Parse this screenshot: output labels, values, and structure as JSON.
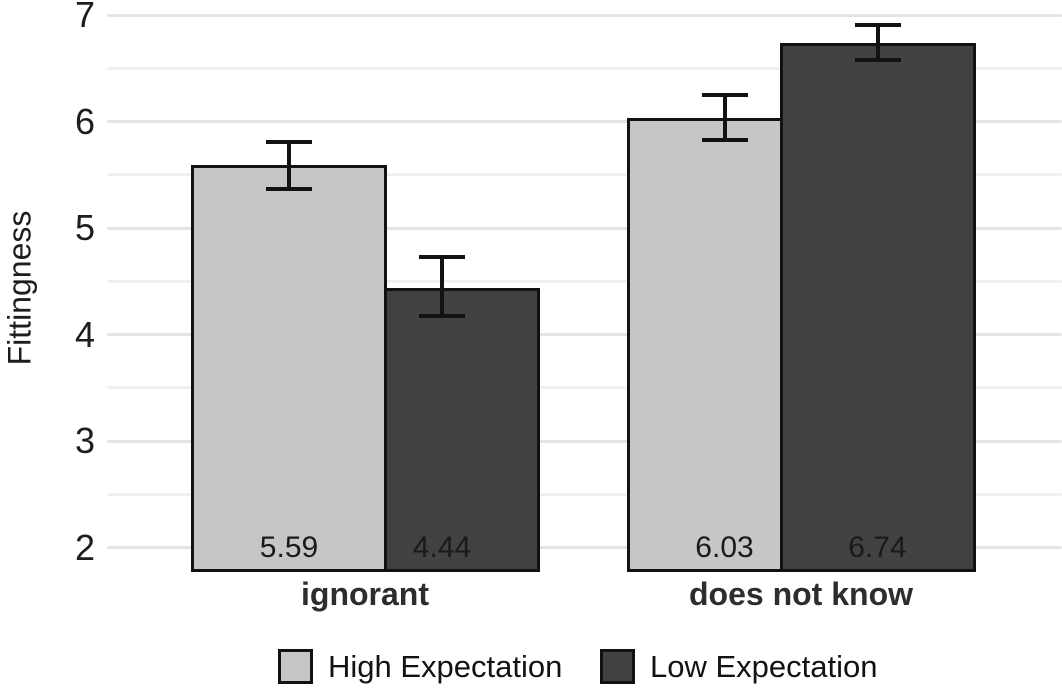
{
  "chart_data": {
    "type": "bar",
    "title": "",
    "xlabel": "",
    "ylabel": "Fittingness",
    "categories": [
      "ignorant",
      "does not know"
    ],
    "series": [
      {
        "name": "High Expectation",
        "color": "#c6c6c6",
        "values": [
          5.59,
          6.03
        ],
        "value_labels": [
          "5.59",
          "6.03"
        ],
        "error_bars": [
          {
            "low": 5.37,
            "high": 5.81
          },
          {
            "low": 5.83,
            "high": 6.25
          }
        ]
      },
      {
        "name": "Low Expectation",
        "color": "#424242",
        "values": [
          4.44,
          6.74
        ],
        "value_labels": [
          "4.44",
          "6.74"
        ],
        "error_bars": [
          {
            "low": 4.17,
            "high": 4.73
          },
          {
            "low": 6.58,
            "high": 6.91
          }
        ]
      }
    ],
    "y_axis": {
      "tick_labels": [
        "2",
        "3",
        "4",
        "5",
        "6",
        "7"
      ],
      "tick_values": [
        2,
        3,
        4,
        5,
        6,
        7
      ],
      "minor_tick_values": [
        2.5,
        3.5,
        4.5,
        5.5,
        6.5
      ],
      "range_min": 1.77,
      "range_max": 7.14,
      "grid": true
    },
    "legend_position": "bottom",
    "bar_outline_color": "#121212",
    "error_bar_color": "#121212",
    "gridline_major_color": "#e4e4e4",
    "gridline_minor_color": "#f0f0f0"
  }
}
